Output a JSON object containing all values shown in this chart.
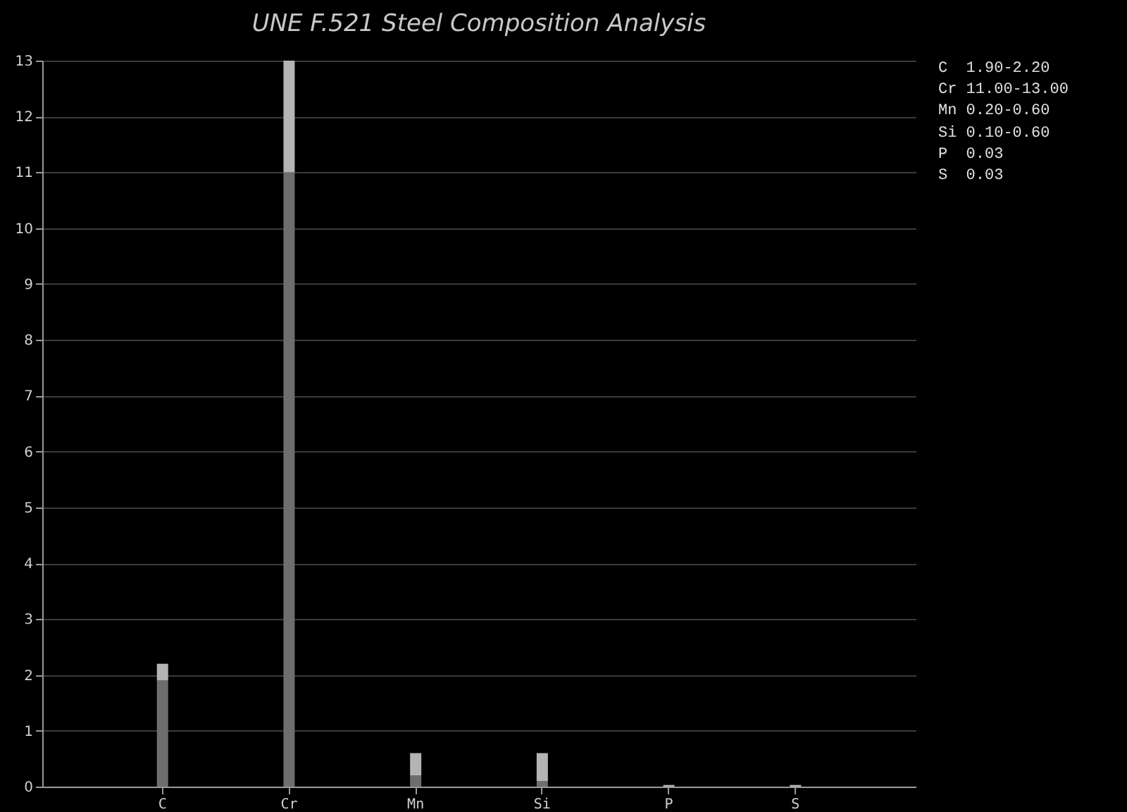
{
  "chart_data": {
    "type": "bar",
    "title": "UNE F.521 Steel Composition Analysis",
    "categories": [
      "C",
      "Cr",
      "Mn",
      "Si",
      "P",
      "S"
    ],
    "stacked": true,
    "series": [
      {
        "color": "#6e6e6e",
        "values": [
          1.9,
          11,
          0.2,
          0.1,
          0,
          0
        ]
      },
      {
        "color": "#b4b4b4",
        "values": [
          0.3,
          2,
          0.4,
          0.5,
          0.03,
          0.03
        ]
      }
    ],
    "ylim": [
      0,
      13
    ],
    "yticks": [
      0,
      1,
      2,
      3,
      4,
      5,
      6,
      7,
      8,
      9,
      10,
      11,
      12,
      13
    ],
    "grid": "y",
    "legend": false,
    "annotations": [
      "C  1.90-2.20",
      "Cr 11.00-13.00",
      "Mn 0.20-0.60",
      "Si 0.10-0.60",
      "P  0.03",
      "S  0.03"
    ]
  }
}
